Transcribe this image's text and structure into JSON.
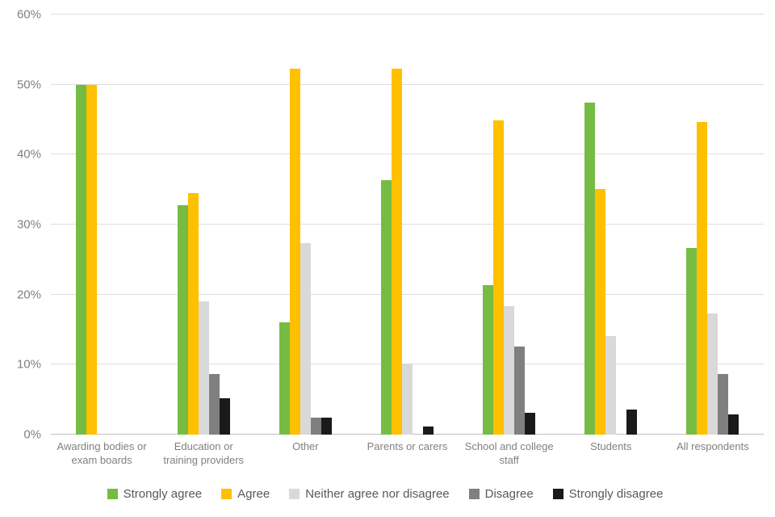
{
  "chart_data": {
    "type": "bar",
    "title": "",
    "xlabel": "",
    "ylabel": "",
    "value_format": "percent",
    "grid": true,
    "legend_position": "bottom",
    "ylim": [
      0,
      60
    ],
    "ytick_step": 10,
    "ytick_labels": [
      "0%",
      "10%",
      "20%",
      "30%",
      "40%",
      "50%",
      "60%"
    ],
    "categories": [
      "Awarding bodies or\nexam boards",
      "Education or\ntraining providers",
      "Other",
      "Parents or carers",
      "School and college\nstaff",
      "Students",
      "All respondents"
    ],
    "series": [
      {
        "name": "Strongly agree",
        "color": "#76bc43",
        "values": [
          50,
          32.8,
          16,
          36.4,
          21.3,
          47.4,
          26.6
        ]
      },
      {
        "name": "Agree",
        "color": "#ffc000",
        "values": [
          50,
          34.5,
          52.3,
          52.3,
          44.9,
          35.1,
          44.6
        ]
      },
      {
        "name": "Neither agree nor disagree",
        "color": "#d9d9d9",
        "values": [
          0,
          19,
          27.3,
          10.2,
          18.4,
          14.1,
          17.3
        ]
      },
      {
        "name": "Disagree",
        "color": "#7f7f7f",
        "values": [
          0,
          8.7,
          2.4,
          0,
          12.6,
          0,
          8.6
        ]
      },
      {
        "name": "Strongly disagree",
        "color": "#1a1a1a",
        "values": [
          0,
          5.2,
          2.4,
          1.1,
          3.1,
          3.6,
          2.9
        ]
      }
    ]
  }
}
